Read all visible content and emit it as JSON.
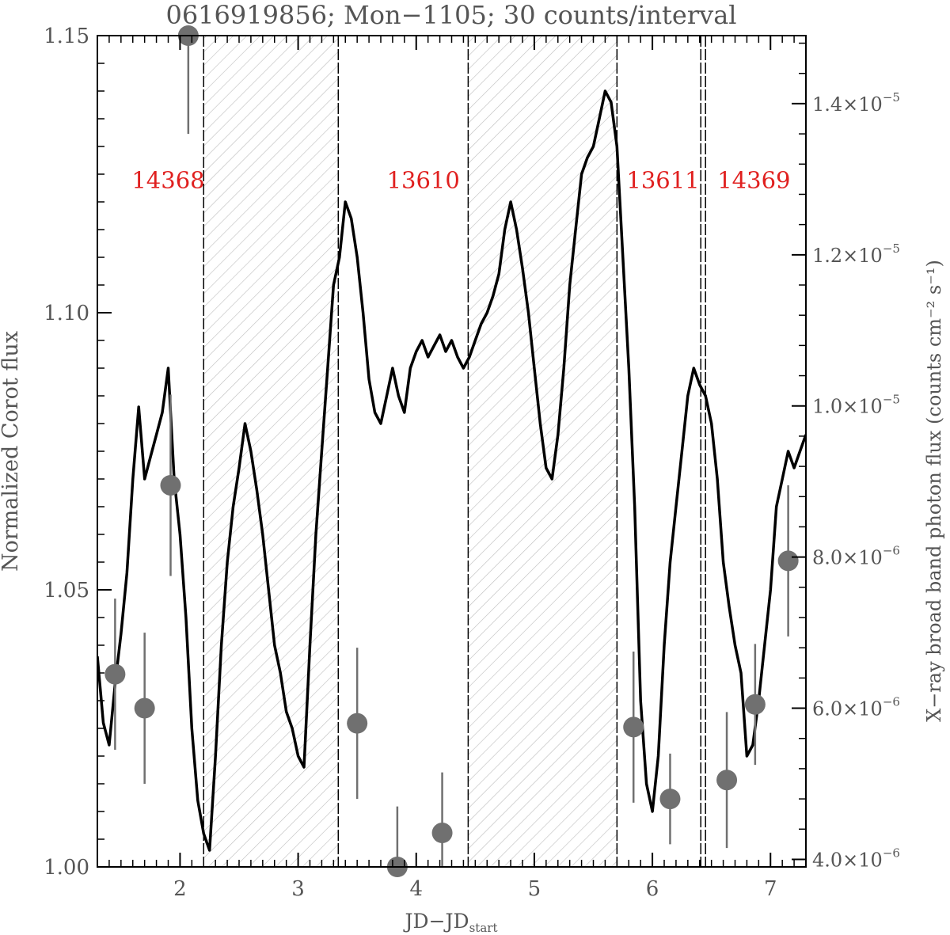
{
  "chart_data": {
    "type": "line",
    "title": "0616919856; Mon−1105; 30 counts/interval",
    "xlabel_main": "JD−JD",
    "xlabel_sub": "start",
    "ylabel_left": "Normalized Corot flux",
    "ylabel_right": "X−ray broad band photon flux (counts cm⁻² s⁻¹)",
    "xlim": [
      1.3,
      7.3
    ],
    "ylim_left": [
      1.0,
      1.15
    ],
    "ylim_right": [
      3.9e-06,
      1.49e-05
    ],
    "grid": false,
    "x_ticks": [
      {
        "value": 2,
        "label": "2"
      },
      {
        "value": 3,
        "label": "3"
      },
      {
        "value": 4,
        "label": "4"
      },
      {
        "value": 5,
        "label": "5"
      },
      {
        "value": 6,
        "label": "6"
      },
      {
        "value": 7,
        "label": "7"
      }
    ],
    "y_left_ticks": [
      {
        "value": 1.0,
        "label": "1.00"
      },
      {
        "value": 1.05,
        "label": "1.05"
      },
      {
        "value": 1.1,
        "label": "1.10"
      },
      {
        "value": 1.15,
        "label": "1.15"
      }
    ],
    "y_right_ticks": [
      {
        "value": 4e-06,
        "mant": "4.0×10",
        "exp": "−6"
      },
      {
        "value": 6e-06,
        "mant": "6.0×10",
        "exp": "−6"
      },
      {
        "value": 8e-06,
        "mant": "8.0×10",
        "exp": "−6"
      },
      {
        "value": 1e-05,
        "mant": "1.0×10",
        "exp": "−5"
      },
      {
        "value": 1.2e-05,
        "mant": "1.2×10",
        "exp": "−5"
      },
      {
        "value": 1.4e-05,
        "mant": "1.4×10",
        "exp": "−5"
      }
    ],
    "hatched_intervals": [
      [
        2.2,
        3.34
      ],
      [
        4.44,
        5.7
      ]
    ],
    "dashed_lines": [
      2.2,
      3.34,
      4.44,
      5.7,
      6.41,
      6.45
    ],
    "observation_labels": [
      {
        "text": "14368",
        "x": 1.9,
        "y": 1.1225
      },
      {
        "text": "13610",
        "x": 4.06,
        "y": 1.1225
      },
      {
        "text": "13611",
        "x": 6.09,
        "y": 1.1225
      },
      {
        "text": "14369",
        "x": 6.86,
        "y": 1.1225
      }
    ],
    "corot_flux": {
      "x": [
        1.3,
        1.35,
        1.4,
        1.45,
        1.5,
        1.55,
        1.6,
        1.65,
        1.7,
        1.75,
        1.8,
        1.85,
        1.9,
        1.95,
        2.0,
        2.05,
        2.1,
        2.15,
        2.2,
        2.25,
        2.3,
        2.35,
        2.4,
        2.45,
        2.5,
        2.55,
        2.6,
        2.65,
        2.7,
        2.75,
        2.8,
        2.85,
        2.9,
        2.95,
        3.0,
        3.05,
        3.1,
        3.15,
        3.2,
        3.25,
        3.3,
        3.35,
        3.4,
        3.45,
        3.5,
        3.55,
        3.6,
        3.65,
        3.7,
        3.75,
        3.8,
        3.85,
        3.9,
        3.95,
        4.0,
        4.05,
        4.1,
        4.15,
        4.2,
        4.25,
        4.3,
        4.35,
        4.4,
        4.45,
        4.5,
        4.55,
        4.6,
        4.65,
        4.7,
        4.75,
        4.8,
        4.85,
        4.9,
        4.95,
        5.0,
        5.05,
        5.1,
        5.15,
        5.2,
        5.25,
        5.3,
        5.35,
        5.4,
        5.45,
        5.5,
        5.55,
        5.6,
        5.65,
        5.7,
        5.75,
        5.8,
        5.85,
        5.9,
        5.95,
        6.0,
        6.05,
        6.1,
        6.15,
        6.2,
        6.25,
        6.3,
        6.35,
        6.4,
        6.45,
        6.5,
        6.55,
        6.6,
        6.65,
        6.7,
        6.75,
        6.8,
        6.85,
        6.9,
        6.95,
        7.0,
        7.05,
        7.1,
        7.15,
        7.2,
        7.25,
        7.3
      ],
      "y": [
        1.038,
        1.026,
        1.022,
        1.033,
        1.042,
        1.053,
        1.07,
        1.083,
        1.07,
        1.074,
        1.078,
        1.082,
        1.09,
        1.07,
        1.06,
        1.045,
        1.025,
        1.012,
        1.006,
        1.003,
        1.02,
        1.04,
        1.055,
        1.065,
        1.072,
        1.08,
        1.075,
        1.068,
        1.06,
        1.05,
        1.04,
        1.035,
        1.028,
        1.025,
        1.02,
        1.018,
        1.04,
        1.06,
        1.075,
        1.09,
        1.105,
        1.11,
        1.12,
        1.117,
        1.11,
        1.1,
        1.088,
        1.082,
        1.08,
        1.085,
        1.09,
        1.085,
        1.082,
        1.09,
        1.093,
        1.095,
        1.092,
        1.094,
        1.096,
        1.093,
        1.095,
        1.092,
        1.09,
        1.092,
        1.095,
        1.098,
        1.1,
        1.103,
        1.107,
        1.115,
        1.12,
        1.115,
        1.108,
        1.1,
        1.09,
        1.08,
        1.072,
        1.07,
        1.078,
        1.09,
        1.105,
        1.115,
        1.125,
        1.128,
        1.13,
        1.135,
        1.14,
        1.138,
        1.13,
        1.11,
        1.09,
        1.065,
        1.03,
        1.015,
        1.01,
        1.02,
        1.04,
        1.055,
        1.065,
        1.075,
        1.085,
        1.09,
        1.087,
        1.085,
        1.08,
        1.07,
        1.055,
        1.047,
        1.04,
        1.035,
        1.02,
        1.022,
        1.03,
        1.04,
        1.05,
        1.065,
        1.07,
        1.075,
        1.072,
        1.075,
        1.078
      ]
    },
    "xray_points": [
      {
        "x": 1.45,
        "y": 6.45e-06,
        "err": 1e-06
      },
      {
        "x": 1.7,
        "y": 6e-06,
        "err": 1e-06
      },
      {
        "x": 1.92,
        "y": 8.95e-06,
        "err": 1.2e-06
      },
      {
        "x": 2.07,
        "y": 1.49e-05,
        "err": 1.3e-06
      },
      {
        "x": 3.5,
        "y": 5.8e-06,
        "err": 1e-06
      },
      {
        "x": 3.84,
        "y": 3.9e-06,
        "err": 8e-07
      },
      {
        "x": 4.22,
        "y": 4.35e-06,
        "err": 8e-07
      },
      {
        "x": 5.84,
        "y": 5.75e-06,
        "err": 1e-06
      },
      {
        "x": 6.15,
        "y": 4.8e-06,
        "err": 6e-07
      },
      {
        "x": 6.63,
        "y": 5.05e-06,
        "err": 9e-07
      },
      {
        "x": 6.87,
        "y": 6.05e-06,
        "err": 8e-07
      },
      {
        "x": 7.15,
        "y": 7.95e-06,
        "err": 1e-06
      }
    ],
    "colors": {
      "curve": "#000000",
      "points": "#707070",
      "labels": "#e0201f",
      "text": "#555555"
    }
  }
}
